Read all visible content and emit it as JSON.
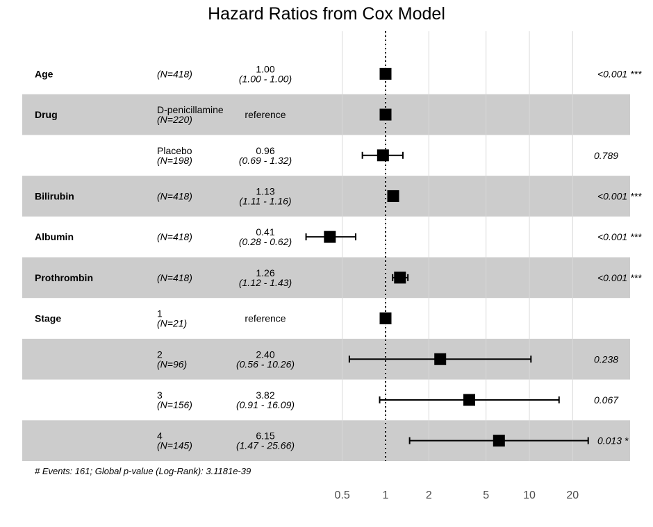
{
  "title": "Hazard Ratios from Cox Model",
  "footnote": "# Events: 161; Global p-value (Log-Rank): 3.1181e-39",
  "chart_data": {
    "type": "forest",
    "title": "Hazard Ratios from Cox Model",
    "x_scale": "log",
    "x_ticks": [
      0.5,
      1,
      2,
      5,
      10,
      20
    ],
    "x_tick_labels": [
      "0.5",
      "1",
      "2",
      "5",
      "10",
      "20"
    ],
    "x_range": [
      0.35,
      30
    ],
    "reference_line": 1,
    "rows": [
      {
        "variable": "Age",
        "level": "",
        "n": "(N=418)",
        "hr": 1.0,
        "hr_text": "1.00",
        "ci_low": 1.0,
        "ci_high": 1.0,
        "ci_text": "(1.00 -  1.00)",
        "p": "<0.001 ***",
        "shaded": false
      },
      {
        "variable": "Drug",
        "level": "D-penicillamine",
        "n": "(N=220)",
        "hr": 1.0,
        "hr_text": "reference",
        "ci_low": null,
        "ci_high": null,
        "ci_text": "",
        "p": "",
        "shaded": true
      },
      {
        "variable": "",
        "level": "Placebo",
        "n": "(N=198)",
        "hr": 0.96,
        "hr_text": "0.96",
        "ci_low": 0.69,
        "ci_high": 1.32,
        "ci_text": "(0.69 -  1.32)",
        "p": "0.789",
        "shaded": false
      },
      {
        "variable": "Bilirubin",
        "level": "",
        "n": "(N=418)",
        "hr": 1.13,
        "hr_text": "1.13",
        "ci_low": 1.11,
        "ci_high": 1.16,
        "ci_text": "(1.11 -  1.16)",
        "p": "<0.001 ***",
        "shaded": true
      },
      {
        "variable": "Albumin",
        "level": "",
        "n": "(N=418)",
        "hr": 0.41,
        "hr_text": "0.41",
        "ci_low": 0.28,
        "ci_high": 0.62,
        "ci_text": "(0.28 -  0.62)",
        "p": "<0.001 ***",
        "shaded": false
      },
      {
        "variable": "Prothrombin",
        "level": "",
        "n": "(N=418)",
        "hr": 1.26,
        "hr_text": "1.26",
        "ci_low": 1.12,
        "ci_high": 1.43,
        "ci_text": "(1.12 -  1.43)",
        "p": "<0.001 ***",
        "shaded": true
      },
      {
        "variable": "Stage",
        "level": "1",
        "n": "(N=21)",
        "hr": 1.0,
        "hr_text": "reference",
        "ci_low": null,
        "ci_high": null,
        "ci_text": "",
        "p": "",
        "shaded": false
      },
      {
        "variable": "",
        "level": "2",
        "n": "(N=96)",
        "hr": 2.4,
        "hr_text": "2.40",
        "ci_low": 0.56,
        "ci_high": 10.26,
        "ci_text": "(0.56 - 10.26)",
        "p": "0.238",
        "shaded": true
      },
      {
        "variable": "",
        "level": "3",
        "n": "(N=156)",
        "hr": 3.82,
        "hr_text": "3.82",
        "ci_low": 0.91,
        "ci_high": 16.09,
        "ci_text": "(0.91 - 16.09)",
        "p": "0.067",
        "shaded": false
      },
      {
        "variable": "",
        "level": "4",
        "n": "(N=145)",
        "hr": 6.15,
        "hr_text": "6.15",
        "ci_low": 1.47,
        "ci_high": 25.66,
        "ci_text": "(1.47 - 25.66)",
        "p": "0.013 *",
        "shaded": true
      }
    ],
    "colors": {
      "shade": "#cccccc",
      "grid": "#d9d9d9",
      "marker": "#000000",
      "tick_text": "#4d4d4d"
    }
  }
}
